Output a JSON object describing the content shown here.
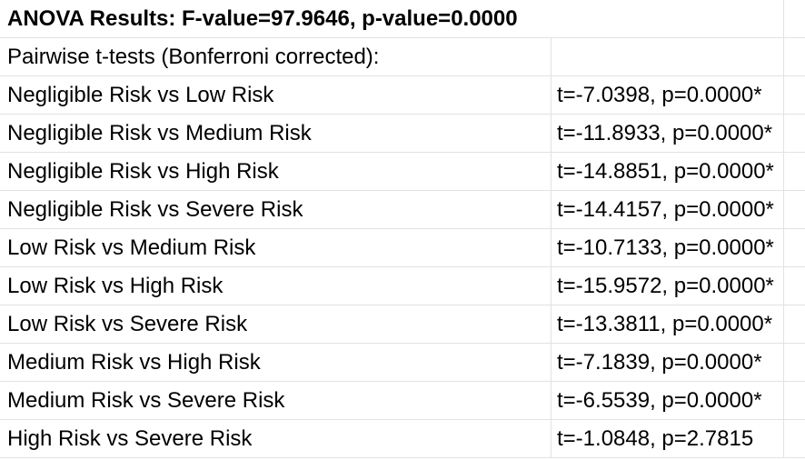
{
  "sheet": {
    "title": "ANOVA Results: F-value=97.9646, p-value=0.0000",
    "subtitle": "Pairwise t-tests (Bonferroni corrected):",
    "rows": [
      {
        "comparison": "Negligible Risk vs Low Risk",
        "result": "t=-7.0398, p=0.0000*"
      },
      {
        "comparison": "Negligible Risk vs Medium Risk",
        "result": "t=-11.8933, p=0.0000*"
      },
      {
        "comparison": "Negligible Risk vs High Risk",
        "result": "t=-14.8851, p=0.0000*"
      },
      {
        "comparison": "Negligible Risk vs Severe Risk",
        "result": "t=-14.4157, p=0.0000*"
      },
      {
        "comparison": "Low Risk vs Medium Risk",
        "result": "t=-10.7133, p=0.0000*"
      },
      {
        "comparison": "Low Risk vs High Risk",
        "result": "t=-15.9572, p=0.0000*"
      },
      {
        "comparison": "Low Risk vs Severe Risk",
        "result": "t=-13.3811, p=0.0000*"
      },
      {
        "comparison": "Medium Risk vs High Risk",
        "result": "t=-7.1839, p=0.0000*"
      },
      {
        "comparison": "Medium Risk vs Severe Risk",
        "result": "t=-6.5539, p=0.0000*"
      },
      {
        "comparison": "High Risk vs Severe Risk",
        "result": "t=-1.0848, p=2.7815"
      }
    ]
  },
  "colors": {
    "gridline": "#e2e2e2",
    "text": "#000000",
    "background": "#ffffff"
  }
}
